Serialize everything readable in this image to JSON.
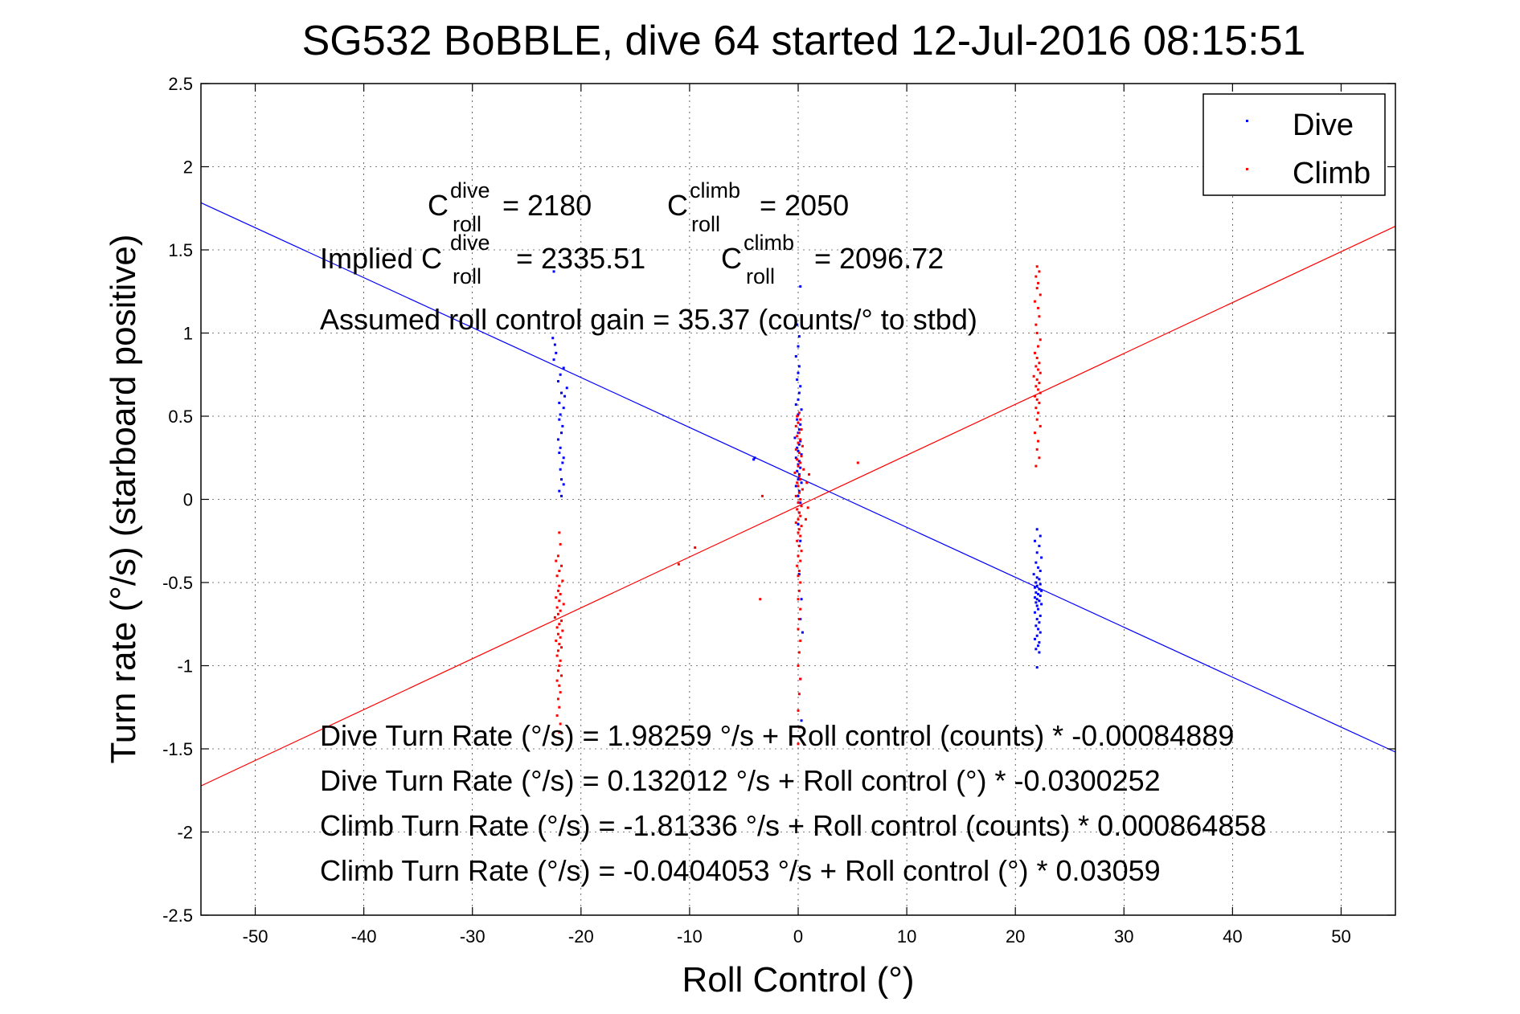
{
  "chart_data": {
    "type": "scatter",
    "title": "SG532 BoBBLE, dive 64 started 12-Jul-2016 08:15:51",
    "xlabel": "Roll Control (°)",
    "ylabel": "Turn rate (°/s) (starboard positive)",
    "xlim": [
      -55,
      55
    ],
    "ylim": [
      -2.5,
      2.5
    ],
    "xticks": [
      -50,
      -40,
      -30,
      -20,
      -10,
      0,
      10,
      20,
      30,
      40,
      50
    ],
    "yticks": [
      -2.5,
      -2,
      -1.5,
      -1,
      -0.5,
      0,
      0.5,
      1,
      1.5,
      2,
      2.5
    ],
    "grid": true,
    "legend_position": "top-right",
    "colors": {
      "dive": "#0000ff",
      "climb": "#ff0000"
    },
    "series": [
      {
        "name": "Dive",
        "color": "#0000ff",
        "points": [
          [
            -22.5,
            1.37
          ],
          [
            -22.6,
            0.97
          ],
          [
            -22.4,
            0.93
          ],
          [
            -22.3,
            0.88
          ],
          [
            -22.5,
            0.84
          ],
          [
            -21.6,
            0.79
          ],
          [
            -21.9,
            0.75
          ],
          [
            -22.1,
            0.71
          ],
          [
            -21.3,
            0.67
          ],
          [
            -21.8,
            0.64
          ],
          [
            -21.5,
            0.62
          ],
          [
            -22.0,
            0.58
          ],
          [
            -21.6,
            0.55
          ],
          [
            -21.9,
            0.51
          ],
          [
            -22.0,
            0.48
          ],
          [
            -21.7,
            0.44
          ],
          [
            -21.8,
            0.4
          ],
          [
            -22.1,
            0.36
          ],
          [
            -21.9,
            0.31
          ],
          [
            -22.0,
            0.28
          ],
          [
            -21.6,
            0.25
          ],
          [
            -21.7,
            0.22
          ],
          [
            -21.9,
            0.18
          ],
          [
            -21.8,
            0.12
          ],
          [
            -21.6,
            0.09
          ],
          [
            -22.0,
            0.05
          ],
          [
            -21.8,
            0.02
          ],
          [
            -4.0,
            0.25
          ],
          [
            -4.1,
            0.24
          ],
          [
            0.2,
            1.28
          ],
          [
            -0.1,
            1.05
          ],
          [
            0.1,
            0.98
          ],
          [
            0.0,
            0.92
          ],
          [
            -0.2,
            0.86
          ],
          [
            0.1,
            0.8
          ],
          [
            0.0,
            0.76
          ],
          [
            -0.1,
            0.72
          ],
          [
            0.2,
            0.68
          ],
          [
            0.1,
            0.64
          ],
          [
            0.0,
            0.6
          ],
          [
            -0.2,
            0.57
          ],
          [
            0.3,
            0.54
          ],
          [
            0.0,
            0.51
          ],
          [
            -0.1,
            0.48
          ],
          [
            0.2,
            0.45
          ],
          [
            0.1,
            0.42
          ],
          [
            0.0,
            0.4
          ],
          [
            -0.3,
            0.37
          ],
          [
            0.2,
            0.35
          ],
          [
            0.1,
            0.33
          ],
          [
            -0.1,
            0.31
          ],
          [
            0.0,
            0.29
          ],
          [
            0.3,
            0.27
          ],
          [
            -0.2,
            0.25
          ],
          [
            0.1,
            0.23
          ],
          [
            0.0,
            0.21
          ],
          [
            0.2,
            0.19
          ],
          [
            -0.1,
            0.17
          ],
          [
            0.1,
            0.15
          ],
          [
            0.0,
            0.12
          ],
          [
            0.3,
            0.1
          ],
          [
            -0.2,
            0.08
          ],
          [
            0.1,
            0.05
          ],
          [
            0.0,
            0.02
          ],
          [
            0.2,
            -0.02
          ],
          [
            0.1,
            -0.08
          ],
          [
            0.0,
            -0.15
          ],
          [
            0.2,
            -0.25
          ],
          [
            0.1,
            -0.45
          ],
          [
            0.3,
            -0.6
          ],
          [
            0.2,
            -0.72
          ],
          [
            0.4,
            -0.8
          ],
          [
            0.2,
            -1.08
          ],
          [
            0.3,
            -1.33
          ],
          [
            22.0,
            -0.18
          ],
          [
            22.3,
            -0.22
          ],
          [
            21.8,
            -0.25
          ],
          [
            22.2,
            -0.28
          ],
          [
            22.0,
            -0.32
          ],
          [
            22.4,
            -0.35
          ],
          [
            21.9,
            -0.38
          ],
          [
            22.1,
            -0.41
          ],
          [
            22.3,
            -0.43
          ],
          [
            21.7,
            -0.45
          ],
          [
            22.0,
            -0.47
          ],
          [
            22.2,
            -0.48
          ],
          [
            21.9,
            -0.5
          ],
          [
            22.3,
            -0.51
          ],
          [
            22.0,
            -0.52
          ],
          [
            21.8,
            -0.53
          ],
          [
            22.2,
            -0.54
          ],
          [
            22.4,
            -0.55
          ],
          [
            21.9,
            -0.56
          ],
          [
            22.1,
            -0.57
          ],
          [
            22.3,
            -0.58
          ],
          [
            21.8,
            -0.59
          ],
          [
            22.0,
            -0.6
          ],
          [
            22.2,
            -0.61
          ],
          [
            21.9,
            -0.62
          ],
          [
            22.4,
            -0.63
          ],
          [
            22.0,
            -0.64
          ],
          [
            22.1,
            -0.66
          ],
          [
            21.8,
            -0.68
          ],
          [
            22.3,
            -0.7
          ],
          [
            22.0,
            -0.72
          ],
          [
            22.2,
            -0.74
          ],
          [
            21.9,
            -0.76
          ],
          [
            22.1,
            -0.78
          ],
          [
            22.3,
            -0.8
          ],
          [
            22.0,
            -0.82
          ],
          [
            21.8,
            -0.84
          ],
          [
            22.2,
            -0.86
          ],
          [
            22.1,
            -0.88
          ],
          [
            21.9,
            -0.9
          ],
          [
            22.2,
            -0.92
          ],
          [
            22.0,
            -1.01
          ]
        ],
        "fit": {
          "intercept": 0.132012,
          "slope": -0.0300252
        }
      },
      {
        "name": "Climb",
        "color": "#ff0000",
        "points": [
          [
            22.0,
            1.4
          ],
          [
            22.2,
            1.37
          ],
          [
            21.9,
            1.34
          ],
          [
            22.1,
            1.3
          ],
          [
            22.0,
            1.27
          ],
          [
            22.3,
            1.23
          ],
          [
            21.8,
            1.19
          ],
          [
            22.1,
            1.15
          ],
          [
            22.2,
            1.1
          ],
          [
            21.9,
            1.05
          ],
          [
            22.0,
            1.0
          ],
          [
            22.3,
            0.96
          ],
          [
            22.1,
            0.92
          ],
          [
            21.8,
            0.88
          ],
          [
            22.0,
            0.85
          ],
          [
            22.2,
            0.82
          ],
          [
            21.9,
            0.8
          ],
          [
            22.1,
            0.78
          ],
          [
            22.3,
            0.76
          ],
          [
            21.7,
            0.74
          ],
          [
            22.0,
            0.72
          ],
          [
            22.2,
            0.7
          ],
          [
            21.9,
            0.68
          ],
          [
            22.1,
            0.66
          ],
          [
            22.3,
            0.64
          ],
          [
            21.8,
            0.62
          ],
          [
            22.0,
            0.6
          ],
          [
            22.2,
            0.58
          ],
          [
            21.9,
            0.55
          ],
          [
            22.1,
            0.52
          ],
          [
            22.0,
            0.48
          ],
          [
            22.3,
            0.44
          ],
          [
            21.8,
            0.4
          ],
          [
            22.1,
            0.35
          ],
          [
            22.0,
            0.3
          ],
          [
            22.2,
            0.25
          ],
          [
            21.9,
            0.2
          ],
          [
            5.5,
            0.22
          ],
          [
            -3.3,
            0.02
          ],
          [
            -9.5,
            -0.29
          ],
          [
            -11.0,
            -0.39
          ],
          [
            -3.5,
            -0.6
          ],
          [
            0.1,
            0.52
          ],
          [
            -0.1,
            0.5
          ],
          [
            0.2,
            0.48
          ],
          [
            0.0,
            0.46
          ],
          [
            -0.2,
            0.44
          ],
          [
            0.3,
            0.42
          ],
          [
            0.1,
            0.4
          ],
          [
            -0.1,
            0.38
          ],
          [
            0.2,
            0.36
          ],
          [
            0.0,
            0.34
          ],
          [
            0.4,
            0.32
          ],
          [
            -0.2,
            0.3
          ],
          [
            0.1,
            0.28
          ],
          [
            0.3,
            0.26
          ],
          [
            -0.1,
            0.24
          ],
          [
            0.2,
            0.22
          ],
          [
            0.0,
            0.2
          ],
          [
            0.5,
            0.18
          ],
          [
            -0.3,
            0.16
          ],
          [
            0.1,
            0.14
          ],
          [
            0.2,
            0.12
          ],
          [
            -0.1,
            0.1
          ],
          [
            0.0,
            0.08
          ],
          [
            0.4,
            0.06
          ],
          [
            0.1,
            0.04
          ],
          [
            -0.2,
            0.02
          ],
          [
            0.2,
            0.0
          ],
          [
            0.0,
            -0.02
          ],
          [
            0.3,
            -0.04
          ],
          [
            -0.1,
            -0.06
          ],
          [
            0.1,
            -0.08
          ],
          [
            0.2,
            -0.1
          ],
          [
            0.0,
            -0.12
          ],
          [
            -0.2,
            -0.14
          ],
          [
            0.3,
            -0.16
          ],
          [
            0.1,
            -0.18
          ],
          [
            0.0,
            -0.2
          ],
          [
            0.2,
            -0.22
          ],
          [
            -0.1,
            -0.25
          ],
          [
            0.1,
            -0.28
          ],
          [
            0.3,
            -0.31
          ],
          [
            0.0,
            -0.34
          ],
          [
            0.2,
            -0.37
          ],
          [
            -0.1,
            -0.4
          ],
          [
            0.1,
            -0.43
          ],
          [
            0.0,
            -0.46
          ],
          [
            0.2,
            -0.5
          ],
          [
            0.1,
            -0.55
          ],
          [
            0.0,
            -0.6
          ],
          [
            0.2,
            -0.66
          ],
          [
            0.1,
            -0.72
          ],
          [
            0.0,
            -0.78
          ],
          [
            0.2,
            -0.85
          ],
          [
            0.1,
            -0.92
          ],
          [
            0.0,
            -1.0
          ],
          [
            0.2,
            -1.08
          ],
          [
            0.1,
            -1.17
          ],
          [
            0.0,
            -1.27
          ],
          [
            0.1,
            -1.37
          ],
          [
            0.0,
            -1.47
          ],
          [
            1.0,
            0.15
          ],
          [
            0.8,
            0.1
          ],
          [
            0.9,
            -0.05
          ],
          [
            0.7,
            -0.12
          ],
          [
            -22.0,
            -0.2
          ],
          [
            -21.9,
            -0.27
          ],
          [
            -22.1,
            -0.34
          ],
          [
            -22.3,
            -0.37
          ],
          [
            -21.8,
            -0.4
          ],
          [
            -22.0,
            -0.43
          ],
          [
            -22.2,
            -0.46
          ],
          [
            -21.7,
            -0.49
          ],
          [
            -22.0,
            -0.52
          ],
          [
            -22.1,
            -0.55
          ],
          [
            -21.9,
            -0.57
          ],
          [
            -22.3,
            -0.59
          ],
          [
            -22.0,
            -0.61
          ],
          [
            -21.6,
            -0.63
          ],
          [
            -22.2,
            -0.65
          ],
          [
            -21.9,
            -0.67
          ],
          [
            -22.1,
            -0.69
          ],
          [
            -22.4,
            -0.71
          ],
          [
            -21.8,
            -0.73
          ],
          [
            -22.0,
            -0.75
          ],
          [
            -22.2,
            -0.77
          ],
          [
            -21.7,
            -0.79
          ],
          [
            -22.1,
            -0.81
          ],
          [
            -21.9,
            -0.83
          ],
          [
            -22.3,
            -0.85
          ],
          [
            -22.0,
            -0.87
          ],
          [
            -21.8,
            -0.89
          ],
          [
            -22.1,
            -0.91
          ],
          [
            -22.2,
            -0.94
          ],
          [
            -21.9,
            -0.97
          ],
          [
            -22.0,
            -1.0
          ],
          [
            -22.1,
            -1.03
          ],
          [
            -21.8,
            -1.06
          ],
          [
            -22.2,
            -1.09
          ],
          [
            -22.0,
            -1.12
          ],
          [
            -21.9,
            -1.16
          ],
          [
            -22.1,
            -1.2
          ],
          [
            -22.0,
            -1.25
          ],
          [
            -22.2,
            -1.3
          ],
          [
            -21.9,
            -1.35
          ],
          [
            -22.0,
            -1.4
          ]
        ],
        "fit": {
          "intercept": -0.0404053,
          "slope": 0.03059
        }
      }
    ],
    "annotations": {
      "c_dive_value": "= 2180",
      "c_climb_value": "= 2050",
      "implied_prefix": "Implied C",
      "implied_dive_value": "= 2335.51",
      "implied_climb_value": "= 2096.72",
      "c_letter": "C",
      "sup_dive": "dive",
      "sup_climb": "climb",
      "sub_roll": "roll",
      "gain": "Assumed roll control gain = 35.37 (counts/° to stbd)",
      "eq1": "Dive Turn Rate (°/s) = 1.98259 °/s + Roll control (counts) * -0.00084889",
      "eq2": "Dive Turn Rate (°/s) = 0.132012 °/s + Roll control (°) * -0.0300252",
      "eq3": "Climb Turn Rate (°/s) = -1.81336 °/s + Roll control (counts) * 0.000864858",
      "eq4": "Climb Turn Rate (°/s) = -0.0404053 °/s + Roll control (°) * 0.03059"
    }
  }
}
